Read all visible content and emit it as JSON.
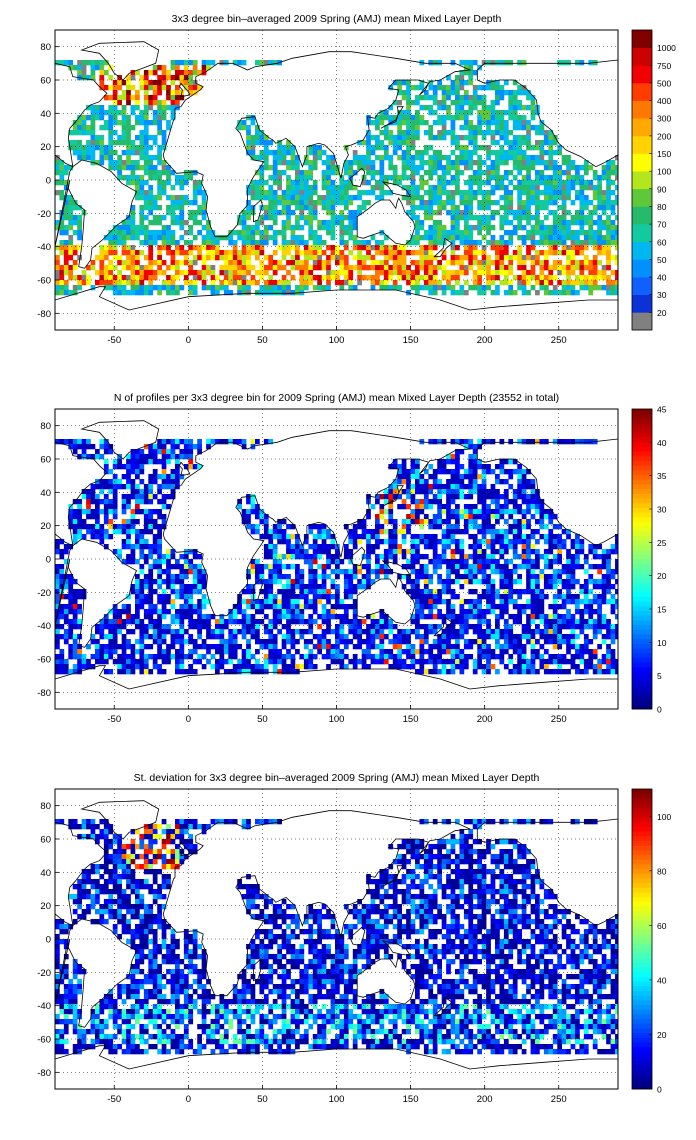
{
  "chart_data": [
    {
      "type": "heatmap",
      "title": "3x3 degree bin–averaged 2009 Spring (AMJ) mean Mixed Layer Depth",
      "x_ticks": [
        -50,
        0,
        50,
        100,
        150,
        200,
        250
      ],
      "y_ticks": [
        80,
        60,
        40,
        20,
        0,
        -20,
        -40,
        -60,
        -80
      ],
      "xlim": [
        -90,
        290
      ],
      "ylim": [
        -90,
        90
      ],
      "grid": true,
      "colorbar": {
        "scale": "categorical",
        "tick_labels": [
          "20",
          "30",
          "40",
          "50",
          "60",
          "70",
          "80",
          "90",
          "100",
          "150",
          "200",
          "300",
          "400",
          "500",
          "750",
          "1000"
        ],
        "colors": [
          "#808080",
          "#0a32d6",
          "#1060ff",
          "#0090ff",
          "#00b8f0",
          "#12c9a0",
          "#25bb6a",
          "#5fc83a",
          "#b4e61e",
          "#ffff00",
          "#ffd200",
          "#ffa800",
          "#ff7800",
          "#ff3c00",
          "#f00000",
          "#cc0000",
          "#800000"
        ]
      },
      "series_note": "gridded 3x3 degree bins over ocean; values read as deep (100-500 m) along the Southern Ocean band near 45S-60S and in the North Atlantic near 50N-65N; 20-60 m over most tropical and subtropical ocean"
    },
    {
      "type": "heatmap",
      "title": "N of profiles per 3x3 degree bin for 2009 Spring (AMJ) mean Mixed Layer Depth  (23552 in total)",
      "x_ticks": [
        -50,
        0,
        50,
        100,
        150,
        200,
        250
      ],
      "y_ticks": [
        80,
        60,
        40,
        20,
        0,
        -20,
        -40,
        -60,
        -80
      ],
      "xlim": [
        -90,
        290
      ],
      "ylim": [
        -90,
        90
      ],
      "grid": true,
      "colorbar": {
        "scale": "linear",
        "min": 0,
        "max": 45,
        "ticks": [
          0,
          5,
          10,
          15,
          20,
          25,
          30,
          35,
          40,
          45
        ]
      },
      "series_note": "mostly 1-10 profiles per bin; hot spots (25-45) in the western North Pacific near 20N-40N, 130E-150E and the Arabian Sea"
    },
    {
      "type": "heatmap",
      "title": "St. deviation for 3x3 degree bin–averaged 2009 Spring (AMJ) mean Mixed Layer Depth",
      "x_ticks": [
        -50,
        0,
        50,
        100,
        150,
        200,
        250
      ],
      "y_ticks": [
        80,
        60,
        40,
        20,
        0,
        -20,
        -40,
        -60,
        -80
      ],
      "xlim": [
        -90,
        290
      ],
      "ylim": [
        -90,
        90
      ],
      "grid": true,
      "colorbar": {
        "scale": "linear",
        "min": 0,
        "max": 110,
        "ticks": [
          0,
          20,
          40,
          60,
          80,
          100
        ]
      },
      "series_note": "mostly 0-20 m; high values (60-110) in the North Atlantic near 45N-65N, 40W-10W; moderate (20-50) along the Southern Ocean band"
    }
  ]
}
